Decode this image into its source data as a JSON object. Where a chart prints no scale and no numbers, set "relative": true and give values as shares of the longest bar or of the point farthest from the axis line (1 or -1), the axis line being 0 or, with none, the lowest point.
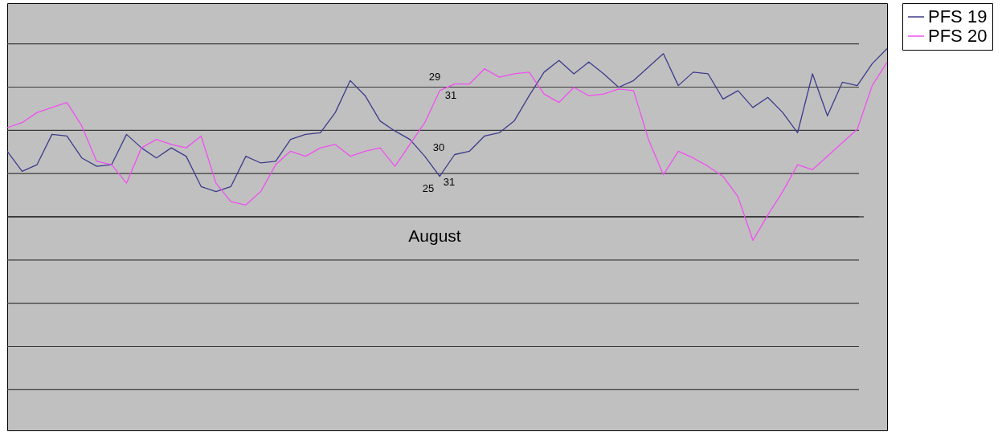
{
  "chart_data": {
    "type": "line",
    "relative": true,
    "grid": "y",
    "legend": "right",
    "marker": "none",
    "line_style": "solid",
    "categories": [
      null,
      null,
      null,
      null,
      null,
      null,
      null,
      null,
      null,
      null,
      null,
      null,
      null,
      null,
      null,
      null,
      null,
      null,
      null,
      null,
      null,
      null,
      null,
      null,
      null,
      null,
      null,
      null,
      null,
      null,
      null,
      null,
      null,
      null,
      null,
      null,
      null,
      null,
      null,
      null,
      null,
      null,
      null,
      null,
      null,
      null,
      null,
      null,
      null,
      null,
      null,
      null,
      null,
      null,
      null,
      null,
      null,
      null,
      null,
      null
    ],
    "series": [
      {
        "name": "PFS 19",
        "color": "#3c3c8c",
        "values": [
          0.39,
          0.27,
          0.31,
          0.49,
          0.48,
          0.35,
          0.3,
          0.31,
          0.49,
          0.41,
          0.35,
          0.41,
          0.36,
          0.18,
          0.15,
          0.18,
          0.36,
          0.32,
          0.33,
          0.46,
          0.49,
          0.5,
          0.62,
          0.81,
          0.72,
          0.57,
          0.51,
          0.46,
          0.36,
          0.24,
          0.37,
          0.39,
          0.48,
          0.5,
          0.57,
          0.72,
          0.86,
          0.93,
          0.85,
          0.92,
          0.85,
          0.77,
          0.81,
          0.89,
          0.97,
          0.78,
          0.86,
          0.85,
          0.7,
          0.75,
          0.65,
          0.71,
          0.62,
          0.5,
          0.85,
          0.6,
          0.8,
          0.78,
          0.91,
          1.0
        ]
      },
      {
        "name": "PFS 20",
        "color": "#f050f0",
        "values": [
          0.53,
          0.56,
          0.62,
          0.65,
          0.68,
          0.54,
          0.33,
          0.31,
          0.2,
          0.41,
          0.46,
          0.43,
          0.41,
          0.48,
          0.2,
          0.09,
          0.07,
          0.15,
          0.31,
          0.39,
          0.36,
          0.41,
          0.43,
          0.36,
          0.39,
          0.41,
          0.3,
          0.43,
          0.56,
          0.75,
          0.79,
          0.79,
          0.88,
          0.83,
          0.85,
          0.86,
          0.73,
          0.68,
          0.77,
          0.72,
          0.73,
          0.76,
          0.75,
          0.46,
          0.25,
          0.39,
          0.35,
          0.3,
          0.24,
          0.12,
          -0.14,
          0.01,
          0.15,
          0.31,
          0.28,
          0.36,
          0.44,
          0.52,
          0.78,
          0.92
        ]
      }
    ],
    "annotations": [
      "29",
      "31",
      "30",
      "25",
      "31",
      "August"
    ]
  }
}
